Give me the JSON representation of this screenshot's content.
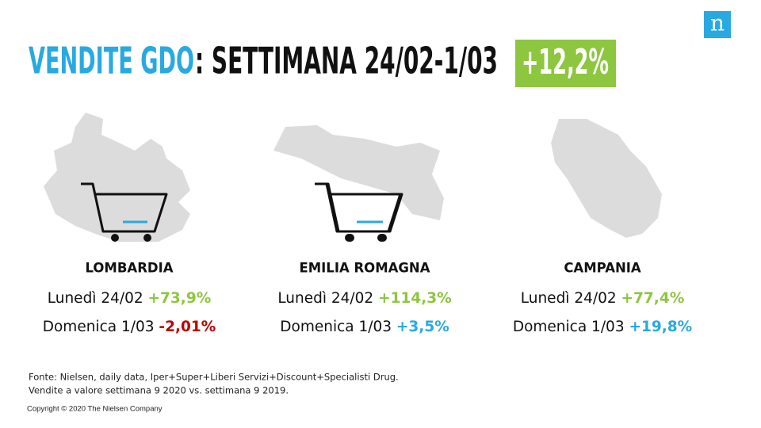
{
  "header": {
    "logo": "n",
    "title_highlight": "VENDITE GDO",
    "title_rest": ": SETTIMANA 24/02-1/03",
    "total": "+12,2%"
  },
  "regions": [
    {
      "name": "LOMBARDIA",
      "lines": [
        {
          "label": "Lunedì 24/02",
          "value": "+73,9%",
          "color": "#8dc63f"
        },
        {
          "label": "Domenica 1/03",
          "value": "-2,01%",
          "color": "#c00000"
        }
      ]
    },
    {
      "name": "EMILIA ROMAGNA",
      "lines": [
        {
          "label": "Lunedì 24/02",
          "value": "+114,3%",
          "color": "#8dc63f"
        },
        {
          "label": "Domenica 1/03",
          "value": "+3,5%",
          "color": "#29a9e1"
        }
      ]
    },
    {
      "name": "CAMPANIA",
      "lines": [
        {
          "label": "Lunedì 24/02",
          "value": "+77,4%",
          "color": "#8dc63f"
        },
        {
          "label": "Domenica 1/03",
          "value": "+19,8%",
          "color": "#29a9e1"
        }
      ]
    }
  ],
  "footer": {
    "source": [
      "Fonte: Nielsen,  daily data, Iper+Super+Liberi  Servizi+Discount+Specialisti  Drug.",
      "Vendite a valore settimana  9 2020  vs. settimana 9 2019."
    ],
    "copyright": "Copyright © 2020 The Nielsen Company"
  }
}
